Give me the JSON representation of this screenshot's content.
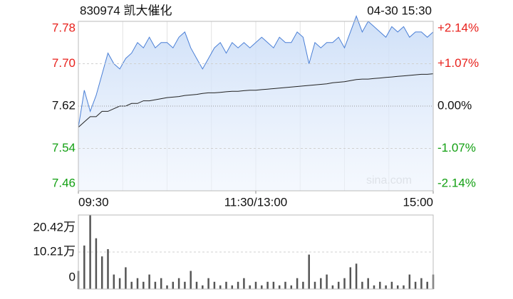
{
  "chart_data": [
    {
      "type": "line",
      "title": "830974 凯大催化",
      "annotations": [
        "04-30 15:30",
        "sina.com"
      ],
      "xlim": [
        0,
        60
      ],
      "xticks": [
        {
          "value": 0,
          "label": "09:30"
        },
        {
          "value": 30,
          "label": "11:30/13:00"
        },
        {
          "value": 60,
          "label": "15:00"
        }
      ],
      "ylim": [
        7.46,
        7.78
      ],
      "yticks": [
        7.46,
        7.54,
        7.62,
        {
          "value": 7.7,
          "label": "7.70"
        },
        7.78
      ],
      "y2lim": [
        -2.14,
        2.14
      ],
      "y2ticks": [
        {
          "value": -2.14,
          "label": "-2.14%"
        },
        {
          "value": -1.07,
          "label": "-1.07%"
        },
        {
          "value": 0,
          "label": "0.00%"
        },
        {
          "value": 1.07,
          "label": "+1.07%"
        },
        {
          "value": 2.14,
          "label": "+2.14%"
        }
      ],
      "up_color": "#e8211c",
      "down_color": "#13a013",
      "grid": true,
      "series": [
        {
          "color": "#4a7fd6",
          "fill": true,
          "values": [
            7.58,
            7.65,
            7.61,
            7.64,
            7.68,
            7.72,
            7.7,
            7.69,
            7.71,
            7.72,
            7.74,
            7.73,
            7.75,
            7.73,
            7.74,
            7.74,
            7.73,
            7.75,
            7.76,
            7.73,
            7.71,
            7.69,
            7.71,
            7.73,
            7.74,
            7.72,
            7.74,
            7.73,
            7.74,
            7.73,
            7.74,
            7.75,
            7.74,
            7.73,
            7.75,
            7.74,
            7.74,
            7.76,
            7.75,
            7.7,
            7.74,
            7.73,
            7.74,
            7.74,
            7.75,
            7.73,
            7.76,
            7.79,
            7.76,
            7.78,
            7.77,
            7.76,
            7.75,
            7.77,
            7.76,
            7.77,
            7.75,
            7.76,
            7.76,
            7.75,
            7.76
          ]
        },
        {
          "color": "#222222",
          "values": [
            7.58,
            7.59,
            7.6,
            7.6,
            7.61,
            7.61,
            7.615,
            7.62,
            7.62,
            7.625,
            7.625,
            7.63,
            7.63,
            7.632,
            7.634,
            7.636,
            7.637,
            7.638,
            7.64,
            7.641,
            7.642,
            7.644,
            7.645,
            7.645,
            7.646,
            7.647,
            7.648,
            7.648,
            7.649,
            7.65,
            7.65,
            7.651,
            7.652,
            7.653,
            7.654,
            7.655,
            7.656,
            7.657,
            7.658,
            7.659,
            7.66,
            7.661,
            7.662,
            7.664,
            7.665,
            7.666,
            7.668,
            7.67,
            7.671,
            7.671,
            7.672,
            7.673,
            7.674,
            7.675,
            7.676,
            7.677,
            7.678,
            7.679,
            7.68,
            7.68,
            7.681
          ]
        }
      ]
    },
    {
      "type": "bar",
      "xlim": [
        0,
        60
      ],
      "ylim": [
        0,
        20.42
      ],
      "yticks": [
        0,
        {
          "value": 10.21,
          "label": "10.21万"
        },
        {
          "value": 20.42,
          "label": "20.42万"
        }
      ],
      "color": "#555555",
      "values": [
        5,
        12,
        20.42,
        14,
        9,
        11,
        4,
        3,
        6,
        2,
        3,
        2,
        4,
        2,
        3,
        1,
        2,
        3,
        2,
        5,
        2,
        1,
        3,
        2,
        1,
        2,
        1,
        2,
        3,
        1,
        2,
        1,
        2,
        2,
        1,
        2,
        1,
        3,
        2,
        9.5,
        2,
        3,
        4,
        1,
        2,
        3,
        6,
        7,
        2,
        3,
        1,
        2,
        1,
        2,
        1,
        1,
        4,
        2,
        3,
        2,
        4
      ]
    }
  ]
}
